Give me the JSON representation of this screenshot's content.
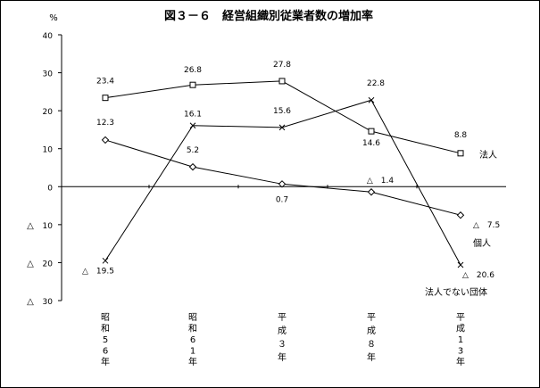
{
  "chart_data": {
    "type": "line",
    "title": "図３－６　経営組織別従業者数の増加率",
    "ylabel": "%",
    "ylim": [
      -30,
      40
    ],
    "yticks": [
      {
        "value": 40,
        "label": "40",
        "neg": ""
      },
      {
        "value": 30,
        "label": "30",
        "neg": ""
      },
      {
        "value": 20,
        "label": "20",
        "neg": ""
      },
      {
        "value": 10,
        "label": "10",
        "neg": ""
      },
      {
        "value": 0,
        "label": "0",
        "neg": ""
      },
      {
        "value": -10,
        "label": "10",
        "neg": "△"
      },
      {
        "value": -20,
        "label": "20",
        "neg": "△"
      },
      {
        "value": -30,
        "label": "30",
        "neg": "△"
      }
    ],
    "categories": [
      "昭和56年",
      "昭和61年",
      "平成3年",
      "平成8年",
      "平成13年"
    ],
    "category_lines": [
      [
        "昭",
        "和",
        "5",
        "6",
        "年"
      ],
      [
        "昭",
        "和",
        "6",
        "1",
        "年"
      ],
      [
        "平",
        "成",
        "３",
        "年"
      ],
      [
        "平",
        "成",
        "８",
        "年"
      ],
      [
        "平",
        "成",
        "1",
        "3",
        "年"
      ]
    ],
    "grid": false,
    "series": [
      {
        "name": "法人",
        "marker": "square",
        "values": [
          23.4,
          26.8,
          27.8,
          14.6,
          8.8
        ],
        "labels": [
          "23.4",
          "26.8",
          "27.8",
          "14.6",
          "8.8"
        ]
      },
      {
        "name": "個人",
        "marker": "diamond",
        "values": [
          12.3,
          5.2,
          0.7,
          -1.4,
          -7.5
        ],
        "labels": [
          "12.3",
          "5.2",
          "0.7",
          "△　1.4",
          "△　7.5"
        ]
      },
      {
        "name": "法人でない団体",
        "marker": "cross",
        "values": [
          -19.5,
          16.1,
          15.6,
          22.8,
          -20.6
        ],
        "labels": [
          "△　19.5",
          "16.1",
          "15.6",
          "22.8",
          "△　20.6"
        ]
      }
    ]
  }
}
